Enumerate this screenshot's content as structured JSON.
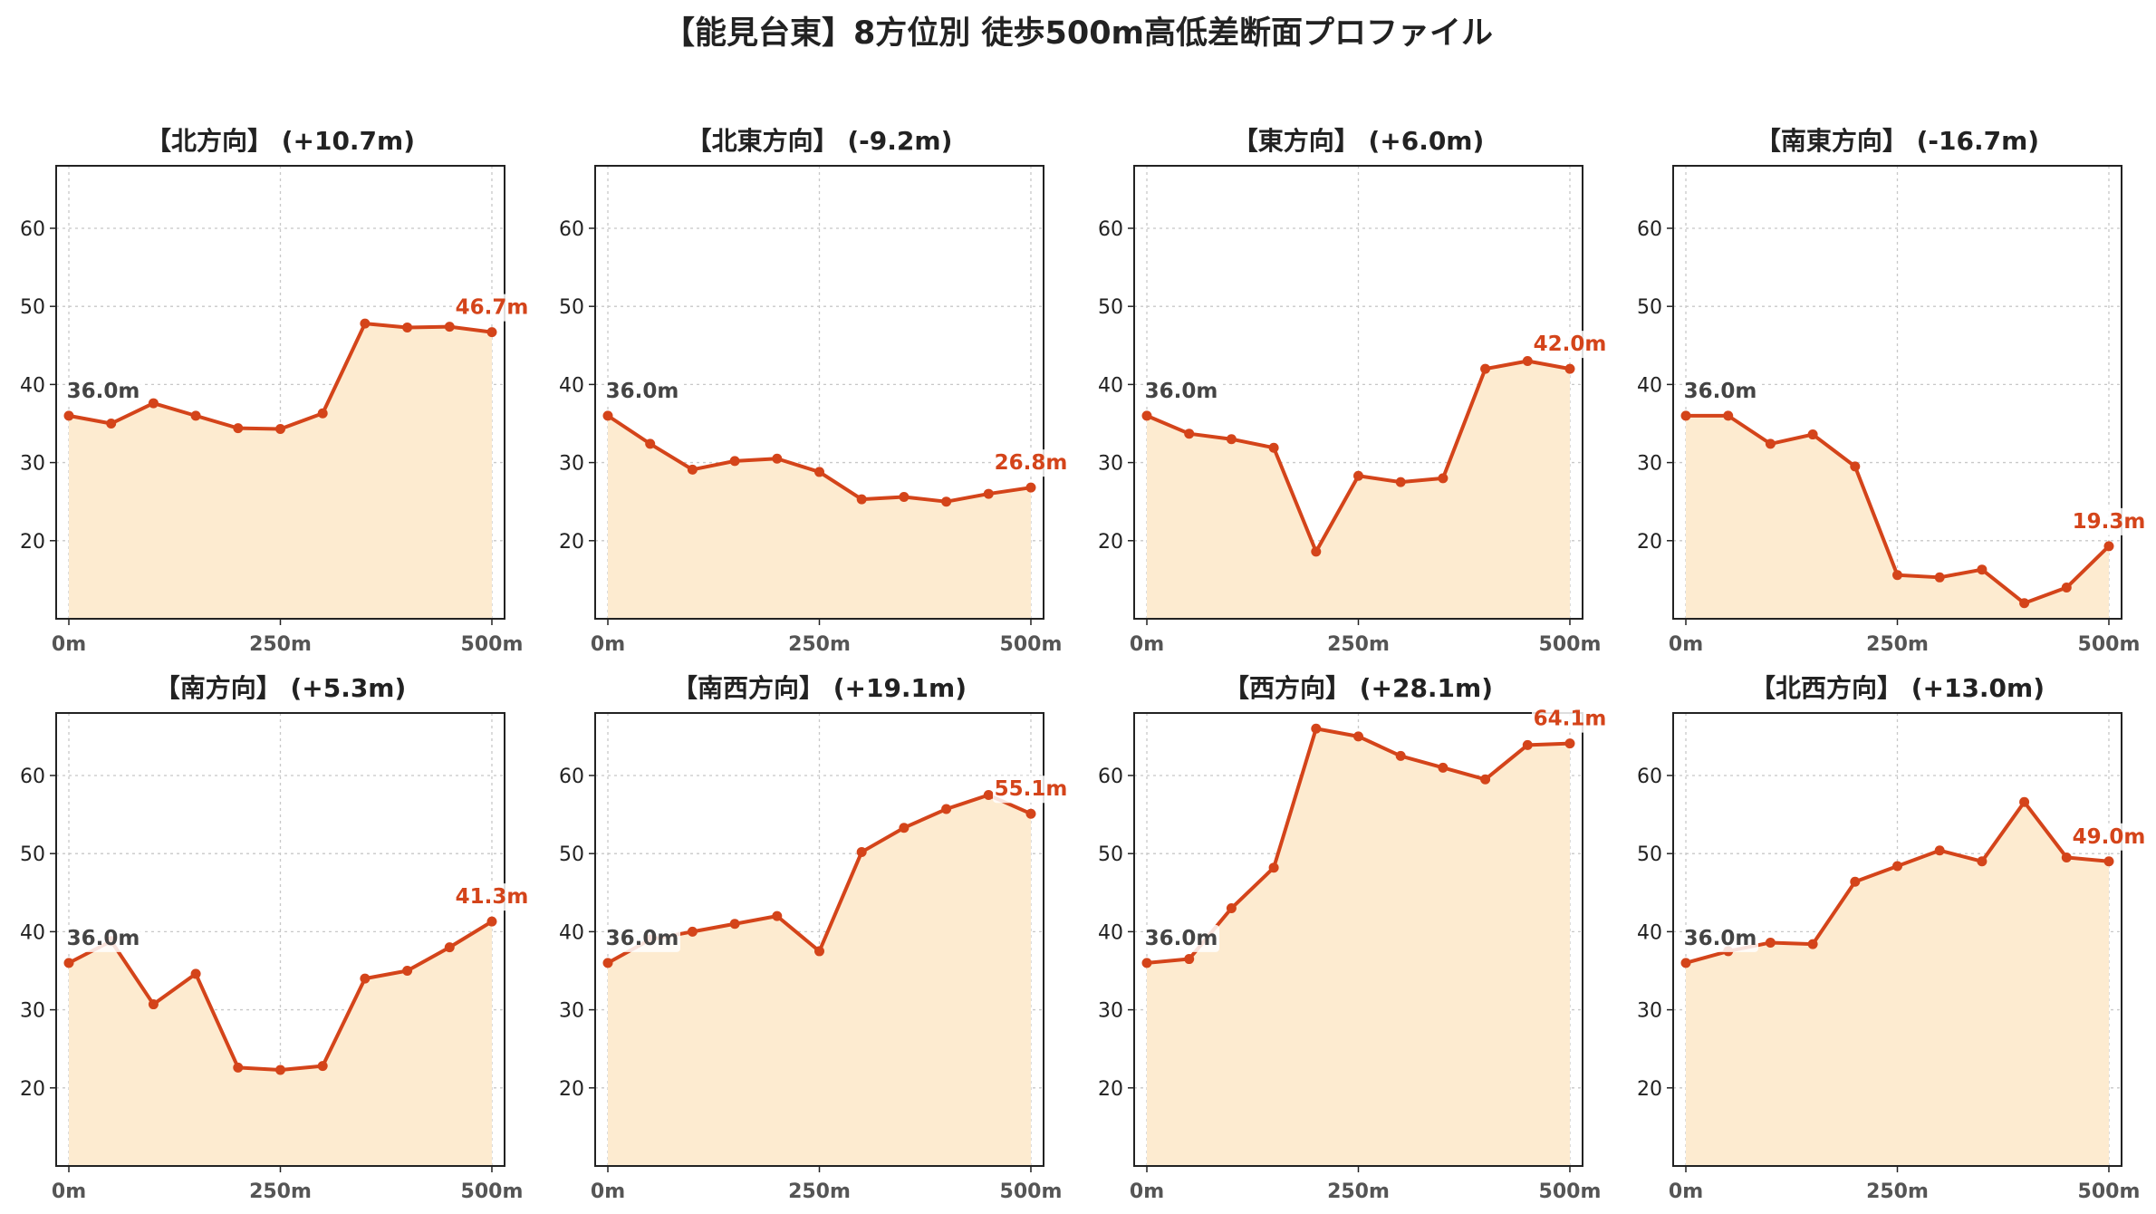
{
  "title": "【能見台東】8方位別 徒歩500m高低差断面プロファイル",
  "colors": {
    "line": "#d4441a",
    "fill": "#fdebd0",
    "start_label": "#444444",
    "end_label": "#d4441a",
    "grid": "#c8c8c8",
    "axis": "#222222"
  },
  "chart_data": [
    {
      "type": "area",
      "title": "【北方向】 (+10.7m)",
      "x": [
        0,
        50,
        100,
        150,
        200,
        250,
        300,
        350,
        400,
        450,
        500
      ],
      "values": [
        36.0,
        35.0,
        37.6,
        36.0,
        34.4,
        34.3,
        36.3,
        47.8,
        47.3,
        47.4,
        46.7
      ],
      "start_label": "36.0m",
      "end_label": "46.7m",
      "xticks": [
        "0m",
        "250m",
        "500m"
      ],
      "yticks": [
        20,
        30,
        40,
        50,
        60
      ],
      "xlim": [
        -15,
        515
      ],
      "ylim": [
        10,
        68
      ],
      "grid": true
    },
    {
      "type": "area",
      "title": "【北東方向】 (-9.2m)",
      "x": [
        0,
        50,
        100,
        150,
        200,
        250,
        300,
        350,
        400,
        450,
        500
      ],
      "values": [
        36.0,
        32.4,
        29.1,
        30.2,
        30.5,
        28.8,
        25.3,
        25.6,
        25.0,
        26.0,
        26.8
      ],
      "start_label": "36.0m",
      "end_label": "26.8m",
      "xticks": [
        "0m",
        "250m",
        "500m"
      ],
      "yticks": [
        20,
        30,
        40,
        50,
        60
      ],
      "xlim": [
        -15,
        515
      ],
      "ylim": [
        10,
        68
      ],
      "grid": true
    },
    {
      "type": "area",
      "title": "【東方向】 (+6.0m)",
      "x": [
        0,
        50,
        100,
        150,
        200,
        250,
        300,
        350,
        400,
        450,
        500
      ],
      "values": [
        36.0,
        33.7,
        33.0,
        31.9,
        18.6,
        28.3,
        27.5,
        28.0,
        42.0,
        43.0,
        42.0
      ],
      "start_label": "36.0m",
      "end_label": "42.0m",
      "xticks": [
        "0m",
        "250m",
        "500m"
      ],
      "yticks": [
        20,
        30,
        40,
        50,
        60
      ],
      "xlim": [
        -15,
        515
      ],
      "ylim": [
        10,
        68
      ],
      "grid": true
    },
    {
      "type": "area",
      "title": "【南東方向】 (-16.7m)",
      "x": [
        0,
        50,
        100,
        150,
        200,
        250,
        300,
        350,
        400,
        450,
        500
      ],
      "values": [
        36.0,
        36.0,
        32.4,
        33.6,
        29.5,
        15.6,
        15.3,
        16.3,
        12.0,
        14.0,
        19.3
      ],
      "start_label": "36.0m",
      "end_label": "19.3m",
      "xticks": [
        "0m",
        "250m",
        "500m"
      ],
      "yticks": [
        20,
        30,
        40,
        50,
        60
      ],
      "xlim": [
        -15,
        515
      ],
      "ylim": [
        10,
        68
      ],
      "grid": true
    },
    {
      "type": "area",
      "title": "【南方向】 (+5.3m)",
      "x": [
        0,
        50,
        100,
        150,
        200,
        250,
        300,
        350,
        400,
        450,
        500
      ],
      "values": [
        36.0,
        38.8,
        30.7,
        34.6,
        22.6,
        22.3,
        22.8,
        34.0,
        35.0,
        38.0,
        41.3
      ],
      "start_label": "36.0m",
      "end_label": "41.3m",
      "xticks": [
        "0m",
        "250m",
        "500m"
      ],
      "yticks": [
        20,
        30,
        40,
        50,
        60
      ],
      "xlim": [
        -15,
        515
      ],
      "ylim": [
        10,
        68
      ],
      "grid": true
    },
    {
      "type": "area",
      "title": "【南西方向】 (+19.1m)",
      "x": [
        0,
        50,
        100,
        150,
        200,
        250,
        300,
        350,
        400,
        450,
        500
      ],
      "values": [
        36.0,
        39.0,
        40.0,
        41.0,
        42.0,
        37.5,
        50.2,
        53.3,
        55.7,
        57.5,
        55.1
      ],
      "start_label": "36.0m",
      "end_label": "55.1m",
      "xticks": [
        "0m",
        "250m",
        "500m"
      ],
      "yticks": [
        20,
        30,
        40,
        50,
        60
      ],
      "xlim": [
        -15,
        515
      ],
      "ylim": [
        10,
        68
      ],
      "grid": true
    },
    {
      "type": "area",
      "title": "【西方向】 (+28.1m)",
      "x": [
        0,
        50,
        100,
        150,
        200,
        250,
        300,
        350,
        400,
        450,
        500
      ],
      "values": [
        36.0,
        36.5,
        43.0,
        48.2,
        66.0,
        65.0,
        62.5,
        61.0,
        59.5,
        63.9,
        64.1
      ],
      "start_label": "36.0m",
      "end_label": "64.1m",
      "xticks": [
        "0m",
        "250m",
        "500m"
      ],
      "yticks": [
        20,
        30,
        40,
        50,
        60
      ],
      "xlim": [
        -15,
        515
      ],
      "ylim": [
        10,
        68
      ],
      "grid": true
    },
    {
      "type": "area",
      "title": "【北西方向】 (+13.0m)",
      "x": [
        0,
        50,
        100,
        150,
        200,
        250,
        300,
        350,
        400,
        450,
        500
      ],
      "values": [
        36.0,
        37.5,
        38.6,
        38.4,
        46.4,
        48.4,
        50.4,
        49.0,
        56.6,
        49.5,
        49.0
      ],
      "start_label": "36.0m",
      "end_label": "49.0m",
      "xticks": [
        "0m",
        "250m",
        "500m"
      ],
      "yticks": [
        20,
        30,
        40,
        50,
        60
      ],
      "xlim": [
        -15,
        515
      ],
      "ylim": [
        10,
        68
      ],
      "grid": true
    }
  ]
}
